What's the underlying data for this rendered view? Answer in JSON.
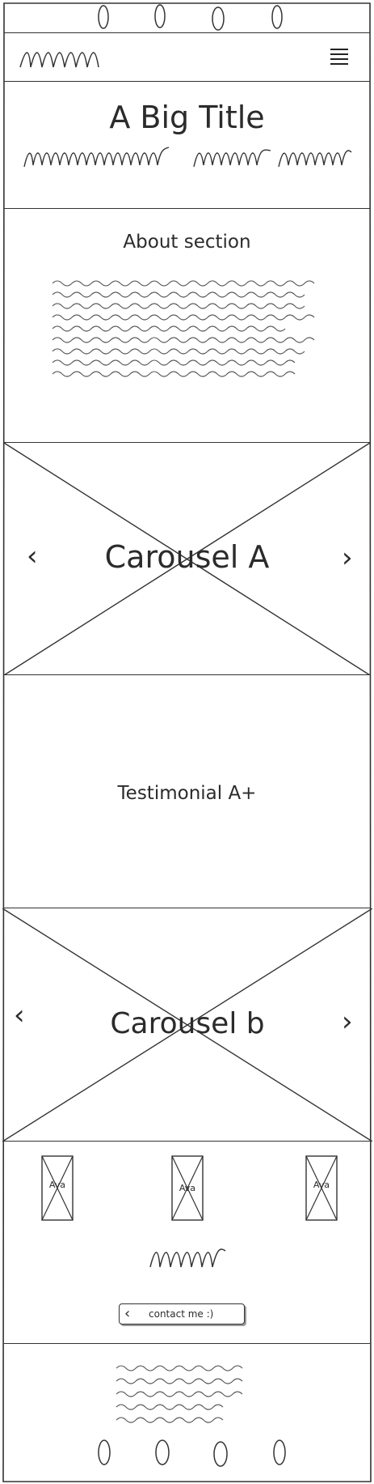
{
  "hero": {
    "title": "A Big Title"
  },
  "about": {
    "heading": "About section"
  },
  "carousel_a": {
    "label": "Carousel A",
    "prev_glyph": "‹",
    "next_glyph": "›"
  },
  "testimonial": {
    "label": "Testimonial A+"
  },
  "carousel_b": {
    "label": "Carousel b",
    "prev_glyph": "‹",
    "next_glyph": "›"
  },
  "avatars": {
    "items": [
      {
        "label": "Ava"
      },
      {
        "label": "Ava"
      },
      {
        "label": "Ava"
      }
    ]
  },
  "contact": {
    "button_label": "contact me :)",
    "glyph": "‹"
  },
  "icons": {
    "menu": "hamburger-menu-icon",
    "logo": "scribble-logo",
    "top_dots": "oval-nav-dots",
    "bottom_dots": "oval-social-dots"
  },
  "colors": {
    "stroke": "#333333",
    "background": "#ffffff"
  }
}
